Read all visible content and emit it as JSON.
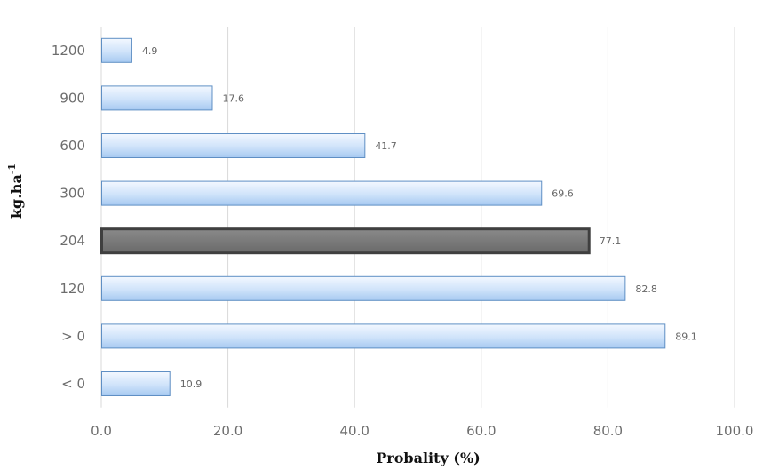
{
  "chart_data": {
    "type": "bar",
    "orientation": "horizontal",
    "categories": [
      "1200",
      "900",
      "600",
      "300",
      "204",
      "120",
      "> 0",
      "< 0"
    ],
    "values": [
      4.9,
      17.6,
      41.7,
      69.6,
      77.1,
      82.8,
      89.1,
      10.9
    ],
    "value_labels": [
      "4.9",
      "17.6",
      "41.7",
      "69.6",
      "77.1",
      "82.8",
      "89.1",
      "10.9"
    ],
    "highlight_category": "204",
    "xlabel": "Probality (%)",
    "ylabel_main": "kg.ha",
    "ylabel_sup": "-1",
    "xlim": [
      0,
      100
    ],
    "xticks": [
      0,
      20,
      40,
      60,
      80,
      100
    ],
    "xtick_labels": [
      "0.0",
      "20.0",
      "40.0",
      "60.0",
      "80.0",
      "100.0"
    ],
    "grid": "vertical",
    "legend": "none",
    "colors": {
      "bar_fill_top": "#eef6ff",
      "bar_fill_bottom": "#a9cdf4",
      "bar_stroke": "#5f8fc4",
      "highlight_fill": "#7b7b7b",
      "highlight_stroke": "#3f3f3f",
      "grid": "#d9d9d9"
    }
  }
}
